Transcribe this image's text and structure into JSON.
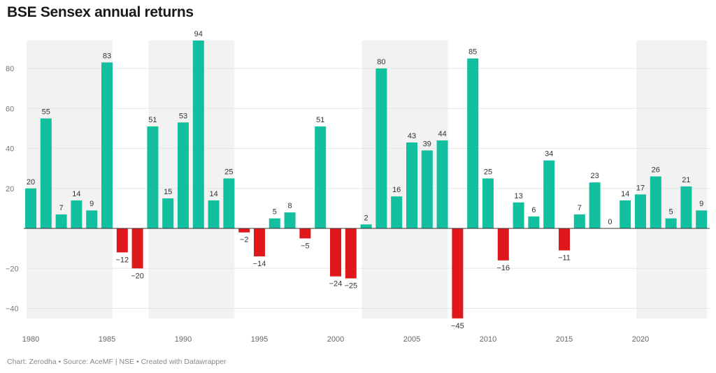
{
  "chart_data": {
    "type": "bar",
    "title": "BSE Sensex annual returns",
    "footer": "Chart: Zerodha • Source: AceMF | NSE • Created with Datawrapper",
    "x": [
      1980,
      1981,
      1982,
      1983,
      1984,
      1985,
      1986,
      1987,
      1988,
      1989,
      1990,
      1991,
      1992,
      1993,
      1994,
      1995,
      1996,
      1997,
      1998,
      1999,
      2000,
      2001,
      2002,
      2003,
      2004,
      2005,
      2006,
      2007,
      2008,
      2009,
      2010,
      2011,
      2012,
      2013,
      2014,
      2015,
      2016,
      2017,
      2018,
      2019,
      2020,
      2021,
      2022,
      2023,
      2024
    ],
    "values": [
      20,
      55,
      7,
      14,
      9,
      83,
      -12,
      -20,
      51,
      15,
      53,
      94,
      14,
      25,
      -2,
      -14,
      5,
      8,
      -5,
      51,
      -24,
      -25,
      2,
      80,
      16,
      43,
      39,
      44,
      -45,
      85,
      25,
      -16,
      13,
      6,
      34,
      -11,
      7,
      23,
      0,
      14,
      17,
      26,
      5,
      21,
      9
    ],
    "x_ticks": [
      1980,
      1985,
      1990,
      1995,
      2000,
      2005,
      2010,
      2015,
      2020
    ],
    "y_ticks": [
      -40,
      -20,
      20,
      40,
      60,
      80
    ],
    "ylim": [
      -45,
      94
    ],
    "grid": true,
    "shaded_periods": [
      [
        1980,
        1985
      ],
      [
        1988,
        1993
      ],
      [
        2002,
        2007
      ],
      [
        2020,
        2024
      ]
    ],
    "colors": {
      "positive": "#12bf9e",
      "negative": "#e0181b",
      "shade": "#f2f2f2",
      "grid": "#e6e6e6"
    }
  }
}
